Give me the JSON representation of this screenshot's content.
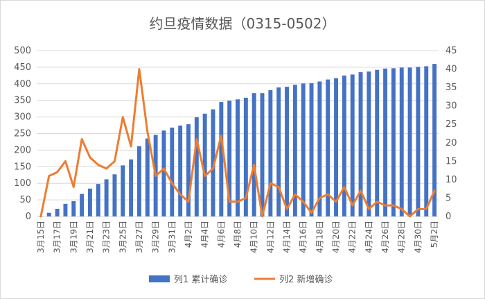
{
  "chart_data": {
    "type": "bar+line",
    "title": "约旦疫情数据（0315-0502）",
    "categories": [
      "3月15日",
      "3月16日",
      "3月17日",
      "3月18日",
      "3月19日",
      "3月20日",
      "3月21日",
      "3月22日",
      "3月23日",
      "3月24日",
      "3月25日",
      "3月26日",
      "3月27日",
      "3月28日",
      "3月29日",
      "3月30日",
      "3月31日",
      "4月1日",
      "4月2日",
      "4月3日",
      "4月4日",
      "4月5日",
      "4月6日",
      "4月7日",
      "4月8日",
      "4月9日",
      "4月10日",
      "4月11日",
      "4月12日",
      "4月13日",
      "4月14日",
      "4月15日",
      "4月16日",
      "4月17日",
      "4月18日",
      "4月19日",
      "4月20日",
      "4月21日",
      "4月22日",
      "4月23日",
      "4月24日",
      "4月25日",
      "4月26日",
      "4月27日",
      "4月28日",
      "4月29日",
      "4月30日",
      "5月1日",
      "5月2日"
    ],
    "x_tick_labels": [
      "3月15日",
      "3月17日",
      "3月19日",
      "3月21日",
      "3月23日",
      "3月25日",
      "3月27日",
      "3月29日",
      "3月31日",
      "4月2日",
      "4月4日",
      "4月6日",
      "4月8日",
      "4月10日",
      "4月12日",
      "4月14日",
      "4月16日",
      "4月18日",
      "4月20日",
      "4月22日",
      "4月24日",
      "4月26日",
      "4月28日",
      "4月30日",
      "5月2日"
    ],
    "y_left": {
      "min": 0,
      "max": 500,
      "ticks": [
        "0",
        "50",
        "100",
        "150",
        "200",
        "250",
        "300",
        "350",
        "400",
        "450",
        "500"
      ]
    },
    "y_right": {
      "min": 0,
      "max": 45,
      "ticks": [
        "0",
        "5",
        "10",
        "15",
        "20",
        "25",
        "30",
        "35",
        "40",
        "45"
      ]
    },
    "grid": true,
    "legend_position": "bottom",
    "series": [
      {
        "name": "列1 累计确诊",
        "type": "bar",
        "axis": "left",
        "color": "#4472c4",
        "values": [
          1,
          11,
          23,
          38,
          46,
          68,
          84,
          98,
          112,
          127,
          154,
          172,
          212,
          235,
          246,
          259,
          268,
          274,
          278,
          299,
          310,
          323,
          345,
          349,
          353,
          358,
          372,
          372,
          381,
          389,
          391,
          397,
          401,
          402,
          407,
          413,
          417,
          425,
          428,
          435,
          437,
          442,
          446,
          447,
          449,
          449,
          451,
          453,
          460
        ]
      },
      {
        "name": "列2 新增确诊",
        "type": "line",
        "axis": "right",
        "color": "#ed7d31",
        "values": [
          0,
          11,
          12,
          15,
          8,
          21,
          16,
          14,
          13,
          15,
          27,
          19,
          40,
          23,
          11,
          13,
          9,
          6,
          4,
          21,
          11,
          13,
          22,
          4,
          4,
          5,
          14,
          0,
          9,
          8,
          2,
          6,
          4,
          1,
          5,
          6,
          4,
          8,
          3,
          7,
          2,
          4,
          3,
          3,
          2,
          0,
          2,
          2,
          7
        ]
      }
    ]
  }
}
